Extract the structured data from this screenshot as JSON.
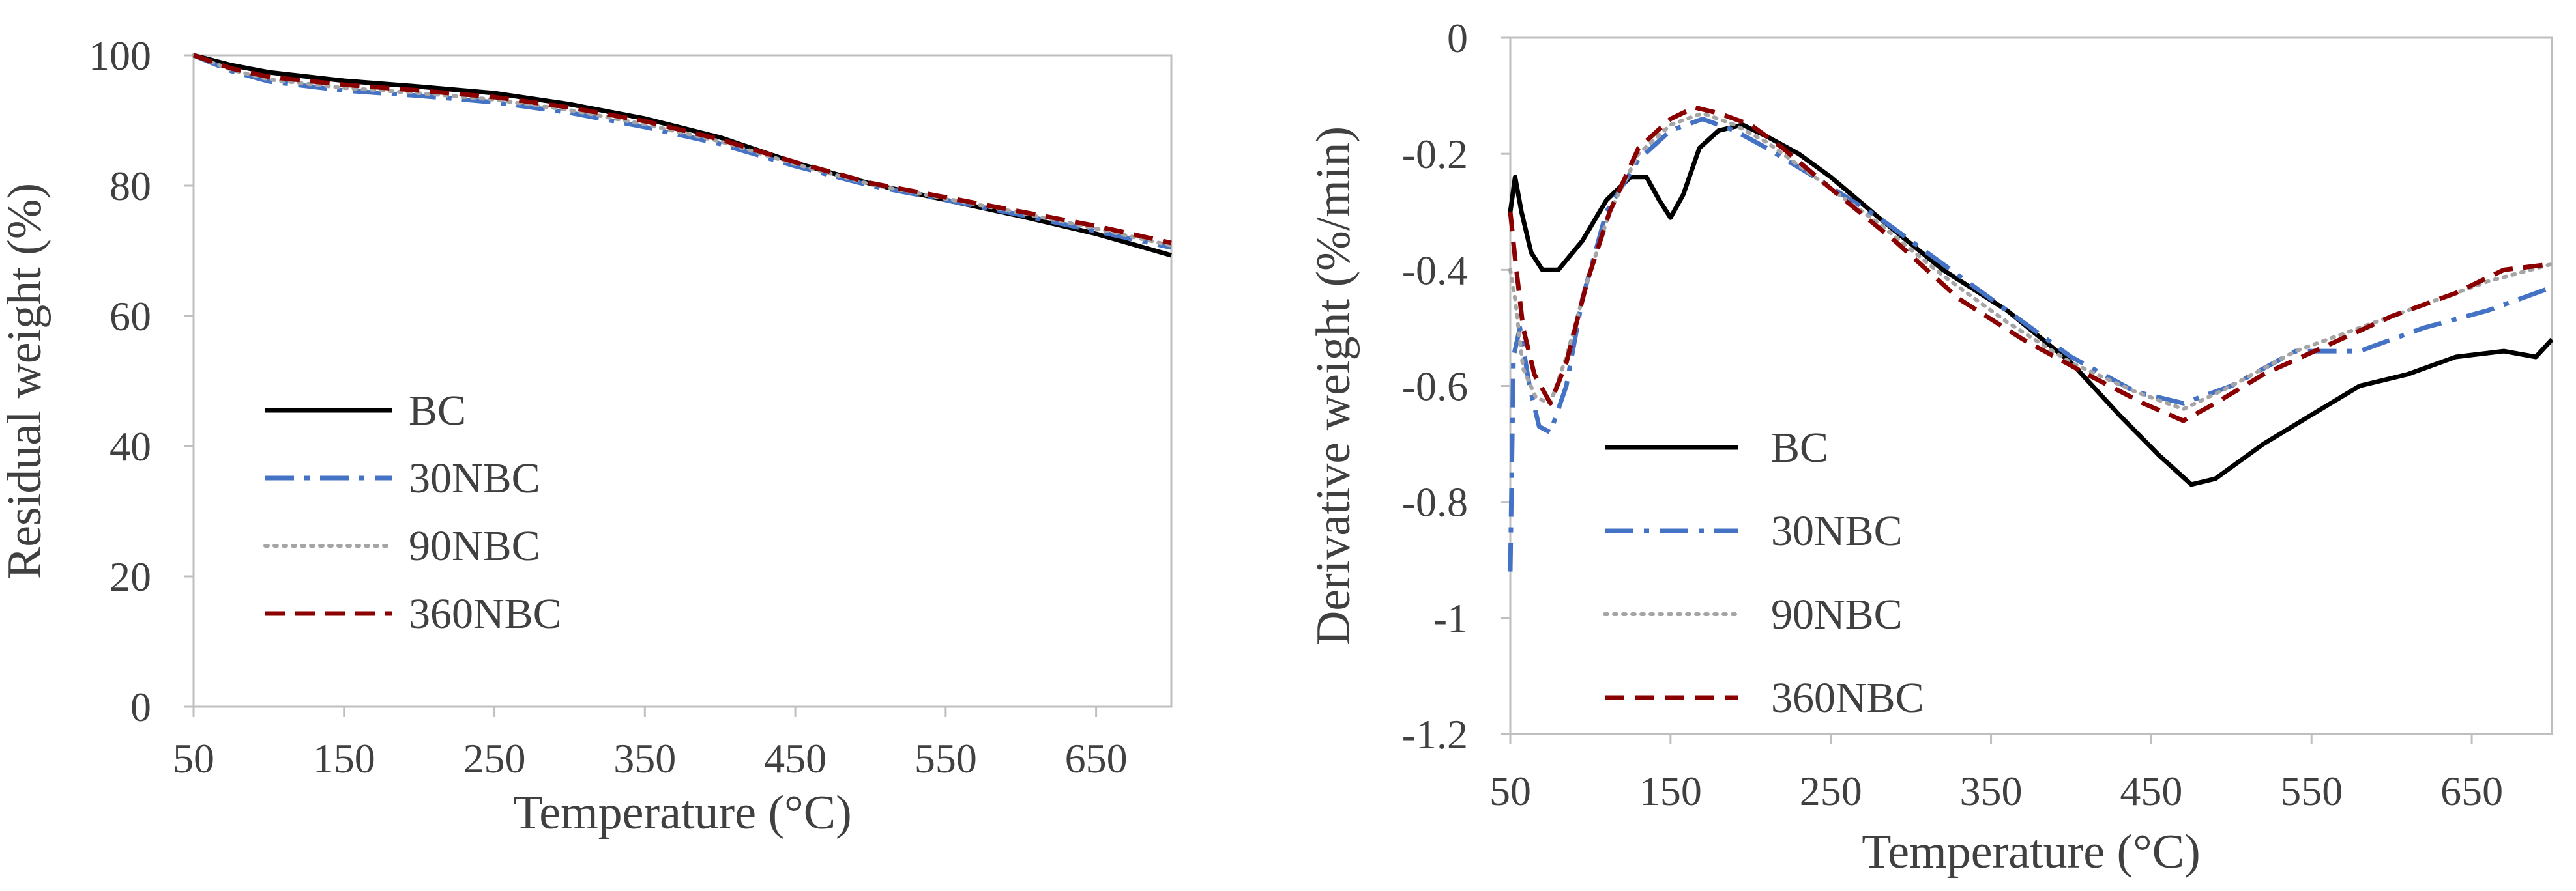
{
  "chart_data": [
    {
      "type": "line",
      "title": "",
      "xlabel": "Temperature (°C)",
      "ylabel": "Residual weight (%)",
      "xlim": [
        50,
        700
      ],
      "ylim": [
        0,
        100
      ],
      "xticks": [
        50,
        150,
        250,
        350,
        450,
        550,
        650
      ],
      "yticks": [
        0,
        20,
        40,
        60,
        80,
        100
      ],
      "legend_position": "lower-left",
      "series": [
        {
          "name": "BC",
          "color": "#000000",
          "dash": "solid",
          "points": [
            [
              50,
              100
            ],
            [
              75,
              98.5
            ],
            [
              100,
              97.4
            ],
            [
              150,
              96.1
            ],
            [
              200,
              95.2
            ],
            [
              250,
              94.2
            ],
            [
              300,
              92.5
            ],
            [
              350,
              90.3
            ],
            [
              400,
              87.4
            ],
            [
              450,
              83.5
            ],
            [
              500,
              80.3
            ],
            [
              550,
              77.8
            ],
            [
              600,
              75.3
            ],
            [
              650,
              72.6
            ],
            [
              700,
              69.3
            ]
          ]
        },
        {
          "name": "30NBC",
          "color": "#4472C4",
          "dash": "dashdot",
          "points": [
            [
              50,
              100
            ],
            [
              75,
              97.6
            ],
            [
              100,
              96.0
            ],
            [
              150,
              94.6
            ],
            [
              200,
              93.8
            ],
            [
              250,
              92.8
            ],
            [
              300,
              91.2
            ],
            [
              350,
              89.0
            ],
            [
              400,
              86.4
            ],
            [
              450,
              83.0
            ],
            [
              500,
              80.0
            ],
            [
              550,
              77.8
            ],
            [
              600,
              75.5
            ],
            [
              650,
              73.0
            ],
            [
              700,
              70.5
            ]
          ]
        },
        {
          "name": "90NBC",
          "color": "#A5A5A5",
          "dash": "dotted",
          "points": [
            [
              50,
              100
            ],
            [
              75,
              97.8
            ],
            [
              100,
              96.3
            ],
            [
              150,
              95.0
            ],
            [
              200,
              94.2
            ],
            [
              250,
              93.2
            ],
            [
              300,
              91.6
            ],
            [
              350,
              89.4
            ],
            [
              400,
              86.8
            ],
            [
              450,
              83.3
            ],
            [
              500,
              80.2
            ],
            [
              550,
              78.0
            ],
            [
              600,
              75.8
            ],
            [
              650,
              73.4
            ],
            [
              700,
              70.8
            ]
          ]
        },
        {
          "name": "360NBC",
          "color": "#8B0000",
          "dash": "dashed",
          "points": [
            [
              50,
              100
            ],
            [
              75,
              98.0
            ],
            [
              100,
              96.7
            ],
            [
              150,
              95.5
            ],
            [
              200,
              94.6
            ],
            [
              250,
              93.6
            ],
            [
              300,
              92.0
            ],
            [
              350,
              89.9
            ],
            [
              400,
              87.1
            ],
            [
              450,
              83.6
            ],
            [
              500,
              80.4
            ],
            [
              550,
              78.2
            ],
            [
              600,
              76.0
            ],
            [
              650,
              73.8
            ],
            [
              700,
              71.2
            ]
          ]
        }
      ]
    },
    {
      "type": "line",
      "title": "",
      "xlabel": "Temperature (°C)",
      "ylabel": "Derivative weight (%/min)",
      "xlim": [
        50,
        700
      ],
      "ylim": [
        -1.2,
        0
      ],
      "xticks": [
        50,
        150,
        250,
        350,
        450,
        550,
        650
      ],
      "yticks": [
        -1.2,
        -1,
        -0.8,
        -0.6,
        -0.4,
        -0.2,
        0
      ],
      "legend_position": "middle-left",
      "series": [
        {
          "name": "BC",
          "color": "#000000",
          "dash": "solid",
          "points": [
            [
              50,
              -0.3
            ],
            [
              53,
              -0.24
            ],
            [
              57,
              -0.3
            ],
            [
              63,
              -0.37
            ],
            [
              70,
              -0.4
            ],
            [
              80,
              -0.4
            ],
            [
              95,
              -0.35
            ],
            [
              110,
              -0.28
            ],
            [
              125,
              -0.24
            ],
            [
              135,
              -0.24
            ],
            [
              143,
              -0.28
            ],
            [
              150,
              -0.31
            ],
            [
              158,
              -0.27
            ],
            [
              168,
              -0.19
            ],
            [
              180,
              -0.16
            ],
            [
              195,
              -0.15
            ],
            [
              210,
              -0.17
            ],
            [
              230,
              -0.2
            ],
            [
              250,
              -0.24
            ],
            [
              280,
              -0.31
            ],
            [
              320,
              -0.4
            ],
            [
              360,
              -0.47
            ],
            [
              400,
              -0.56
            ],
            [
              430,
              -0.65
            ],
            [
              455,
              -0.72
            ],
            [
              475,
              -0.77
            ],
            [
              490,
              -0.76
            ],
            [
              520,
              -0.7
            ],
            [
              550,
              -0.65
            ],
            [
              580,
              -0.6
            ],
            [
              610,
              -0.58
            ],
            [
              640,
              -0.55
            ],
            [
              670,
              -0.54
            ],
            [
              690,
              -0.55
            ],
            [
              700,
              -0.52
            ]
          ]
        },
        {
          "name": "30NBC",
          "color": "#4472C4",
          "dash": "dashdot",
          "points": [
            [
              50,
              -0.92
            ],
            [
              52,
              -0.55
            ],
            [
              56,
              -0.5
            ],
            [
              62,
              -0.6
            ],
            [
              68,
              -0.67
            ],
            [
              75,
              -0.68
            ],
            [
              85,
              -0.6
            ],
            [
              95,
              -0.45
            ],
            [
              110,
              -0.3
            ],
            [
              130,
              -0.21
            ],
            [
              150,
              -0.16
            ],
            [
              170,
              -0.14
            ],
            [
              190,
              -0.16
            ],
            [
              210,
              -0.19
            ],
            [
              240,
              -0.24
            ],
            [
              280,
              -0.31
            ],
            [
              320,
              -0.39
            ],
            [
              360,
              -0.47
            ],
            [
              400,
              -0.55
            ],
            [
              440,
              -0.61
            ],
            [
              470,
              -0.63
            ],
            [
              500,
              -0.6
            ],
            [
              540,
              -0.54
            ],
            [
              580,
              -0.54
            ],
            [
              620,
              -0.5
            ],
            [
              660,
              -0.47
            ],
            [
              700,
              -0.43
            ]
          ]
        },
        {
          "name": "90NBC",
          "color": "#A5A5A5",
          "dash": "dotted",
          "points": [
            [
              50,
              -0.4
            ],
            [
              53,
              -0.45
            ],
            [
              58,
              -0.57
            ],
            [
              66,
              -0.62
            ],
            [
              75,
              -0.63
            ],
            [
              85,
              -0.55
            ],
            [
              98,
              -0.42
            ],
            [
              112,
              -0.3
            ],
            [
              130,
              -0.2
            ],
            [
              150,
              -0.15
            ],
            [
              170,
              -0.13
            ],
            [
              190,
              -0.15
            ],
            [
              210,
              -0.18
            ],
            [
              240,
              -0.24
            ],
            [
              280,
              -0.32
            ],
            [
              320,
              -0.41
            ],
            [
              360,
              -0.49
            ],
            [
              400,
              -0.56
            ],
            [
              440,
              -0.61
            ],
            [
              470,
              -0.64
            ],
            [
              500,
              -0.6
            ],
            [
              540,
              -0.54
            ],
            [
              580,
              -0.5
            ],
            [
              620,
              -0.46
            ],
            [
              660,
              -0.42
            ],
            [
              700,
              -0.39
            ]
          ]
        },
        {
          "name": "360NBC",
          "color": "#8B0000",
          "dash": "dashed",
          "points": [
            [
              50,
              -0.3
            ],
            [
              53,
              -0.38
            ],
            [
              58,
              -0.5
            ],
            [
              65,
              -0.58
            ],
            [
              75,
              -0.63
            ],
            [
              85,
              -0.56
            ],
            [
              98,
              -0.42
            ],
            [
              112,
              -0.3
            ],
            [
              130,
              -0.19
            ],
            [
              150,
              -0.14
            ],
            [
              165,
              -0.12
            ],
            [
              180,
              -0.13
            ],
            [
              200,
              -0.15
            ],
            [
              220,
              -0.19
            ],
            [
              250,
              -0.26
            ],
            [
              290,
              -0.35
            ],
            [
              330,
              -0.45
            ],
            [
              370,
              -0.52
            ],
            [
              410,
              -0.58
            ],
            [
              445,
              -0.63
            ],
            [
              470,
              -0.66
            ],
            [
              490,
              -0.63
            ],
            [
              520,
              -0.58
            ],
            [
              560,
              -0.53
            ],
            [
              600,
              -0.48
            ],
            [
              640,
              -0.44
            ],
            [
              670,
              -0.4
            ],
            [
              700,
              -0.39
            ]
          ]
        }
      ]
    }
  ]
}
